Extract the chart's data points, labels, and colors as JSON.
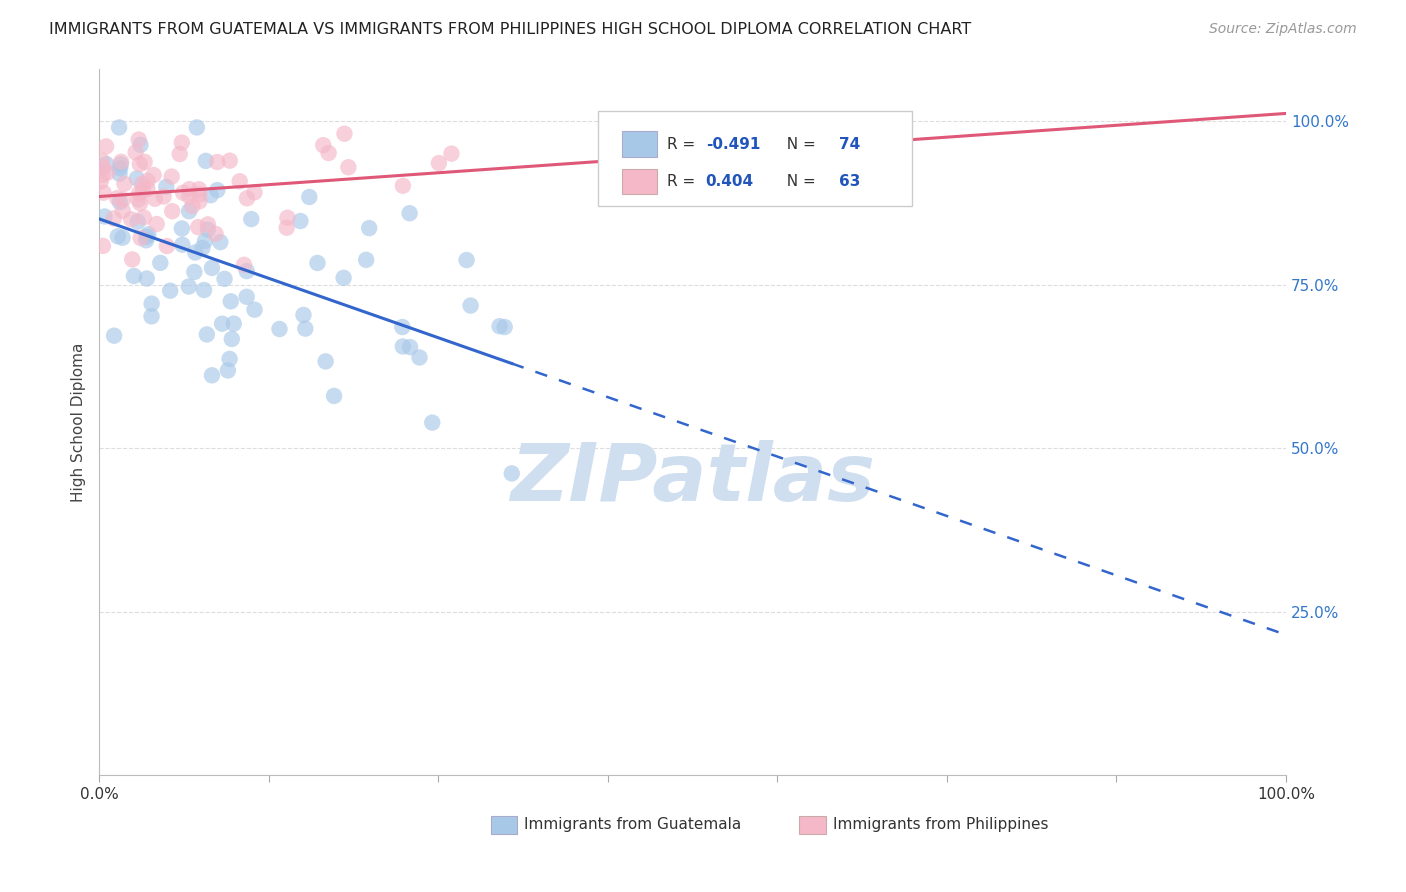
{
  "title": "IMMIGRANTS FROM GUATEMALA VS IMMIGRANTS FROM PHILIPPINES HIGH SCHOOL DIPLOMA CORRELATION CHART",
  "source": "Source: ZipAtlas.com",
  "ylabel": "High School Diploma",
  "guatemala_color": "#a8c8e8",
  "philippines_color": "#f4b8c8",
  "guatemala_line_color": "#3366cc",
  "philippines_line_color": "#e05878",
  "guatemala_R": -0.491,
  "guatemala_N": 74,
  "philippines_R": 0.404,
  "philippines_N": 63,
  "watermark": "ZIPatlas",
  "watermark_color": "#d0dff0",
  "background_color": "#ffffff",
  "grid_color": "#dddddd",
  "title_fontsize": 11.5,
  "right_tick_color": "#3377cc",
  "legend_R_color": "#2255bb"
}
